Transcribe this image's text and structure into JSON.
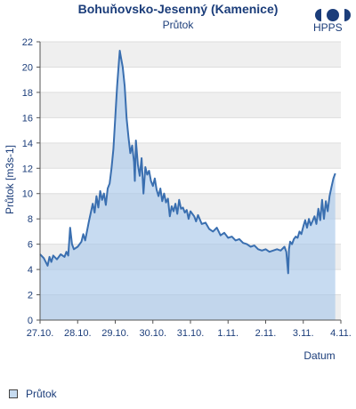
{
  "header": {
    "title": "Bohuňovsko-Jesenný (Kamenice)",
    "subtitle": "Průtok",
    "logo_text": "HPPS"
  },
  "legend": {
    "label": "Průtok"
  },
  "colors": {
    "line": "#3a6fb0",
    "fill": "#a9c8ea",
    "band": "#efefef",
    "axis": "#1b3d7a"
  },
  "chart_data": {
    "type": "area",
    "ylabel": "Průtok [m3s-1]",
    "xlabel": "Datum",
    "ylim": [
      0,
      22
    ],
    "yticks": [
      0,
      2,
      4,
      6,
      8,
      10,
      12,
      14,
      16,
      18,
      20,
      22
    ],
    "xlim": [
      0,
      8
    ],
    "xticks": [
      {
        "value": 0,
        "label": "27.10."
      },
      {
        "value": 1,
        "label": "28.10."
      },
      {
        "value": 2,
        "label": "29.10."
      },
      {
        "value": 3,
        "label": "30.10."
      },
      {
        "value": 4,
        "label": "31.10."
      },
      {
        "value": 5,
        "label": "1.11."
      },
      {
        "value": 6,
        "label": "2.11."
      },
      {
        "value": 7,
        "label": "3.11."
      },
      {
        "value": 8,
        "label": "4.11."
      }
    ],
    "series": [
      {
        "name": "Průtok",
        "points": [
          [
            0.0,
            5.2
          ],
          [
            0.1,
            4.9
          ],
          [
            0.2,
            4.3
          ],
          [
            0.25,
            5.0
          ],
          [
            0.3,
            4.6
          ],
          [
            0.35,
            5.1
          ],
          [
            0.45,
            4.8
          ],
          [
            0.55,
            5.2
          ],
          [
            0.65,
            5.0
          ],
          [
            0.7,
            5.4
          ],
          [
            0.75,
            5.1
          ],
          [
            0.8,
            7.3
          ],
          [
            0.85,
            6.0
          ],
          [
            0.9,
            5.6
          ],
          [
            1.0,
            5.8
          ],
          [
            1.1,
            6.2
          ],
          [
            1.15,
            6.8
          ],
          [
            1.2,
            6.3
          ],
          [
            1.3,
            7.8
          ],
          [
            1.4,
            9.2
          ],
          [
            1.45,
            8.5
          ],
          [
            1.5,
            9.8
          ],
          [
            1.55,
            8.9
          ],
          [
            1.6,
            10.2
          ],
          [
            1.65,
            9.5
          ],
          [
            1.7,
            10.0
          ],
          [
            1.75,
            9.1
          ],
          [
            1.8,
            10.4
          ],
          [
            1.85,
            10.8
          ],
          [
            1.9,
            12.0
          ],
          [
            1.95,
            13.5
          ],
          [
            2.0,
            16.0
          ],
          [
            2.05,
            18.5
          ],
          [
            2.1,
            20.5
          ],
          [
            2.12,
            21.3
          ],
          [
            2.15,
            20.8
          ],
          [
            2.2,
            20.0
          ],
          [
            2.25,
            18.5
          ],
          [
            2.3,
            16.0
          ],
          [
            2.35,
            14.5
          ],
          [
            2.4,
            13.2
          ],
          [
            2.45,
            13.8
          ],
          [
            2.5,
            12.5
          ],
          [
            2.52,
            11.0
          ],
          [
            2.55,
            14.2
          ],
          [
            2.6,
            12.3
          ],
          [
            2.65,
            11.4
          ],
          [
            2.7,
            12.8
          ],
          [
            2.75,
            10.0
          ],
          [
            2.8,
            12.1
          ],
          [
            2.85,
            11.5
          ],
          [
            2.9,
            11.8
          ],
          [
            2.95,
            11.0
          ],
          [
            3.0,
            10.6
          ],
          [
            3.05,
            11.2
          ],
          [
            3.1,
            10.3
          ],
          [
            3.15,
            9.8
          ],
          [
            3.2,
            10.4
          ],
          [
            3.25,
            9.4
          ],
          [
            3.3,
            10.0
          ],
          [
            3.35,
            9.3
          ],
          [
            3.4,
            9.6
          ],
          [
            3.45,
            8.2
          ],
          [
            3.5,
            9.0
          ],
          [
            3.55,
            8.6
          ],
          [
            3.6,
            9.2
          ],
          [
            3.65,
            8.4
          ],
          [
            3.7,
            9.5
          ],
          [
            3.75,
            8.8
          ],
          [
            3.8,
            8.9
          ],
          [
            3.85,
            8.5
          ],
          [
            3.9,
            8.7
          ],
          [
            3.95,
            8.0
          ],
          [
            4.0,
            8.6
          ],
          [
            4.1,
            8.2
          ],
          [
            4.15,
            7.8
          ],
          [
            4.2,
            8.3
          ],
          [
            4.3,
            7.6
          ],
          [
            4.4,
            7.7
          ],
          [
            4.5,
            7.2
          ],
          [
            4.6,
            7.0
          ],
          [
            4.7,
            7.3
          ],
          [
            4.8,
            6.7
          ],
          [
            4.9,
            6.9
          ],
          [
            5.0,
            6.5
          ],
          [
            5.1,
            6.6
          ],
          [
            5.2,
            6.3
          ],
          [
            5.3,
            6.4
          ],
          [
            5.4,
            6.1
          ],
          [
            5.5,
            6.0
          ],
          [
            5.6,
            5.8
          ],
          [
            5.7,
            5.9
          ],
          [
            5.8,
            5.6
          ],
          [
            5.9,
            5.5
          ],
          [
            6.0,
            5.6
          ],
          [
            6.1,
            5.4
          ],
          [
            6.2,
            5.5
          ],
          [
            6.3,
            5.6
          ],
          [
            6.4,
            5.5
          ],
          [
            6.5,
            5.8
          ],
          [
            6.55,
            5.4
          ],
          [
            6.6,
            3.7
          ],
          [
            6.62,
            5.6
          ],
          [
            6.65,
            6.2
          ],
          [
            6.7,
            6.0
          ],
          [
            6.75,
            6.4
          ],
          [
            6.8,
            6.6
          ],
          [
            6.85,
            6.5
          ],
          [
            6.9,
            7.0
          ],
          [
            6.95,
            6.8
          ],
          [
            7.0,
            7.4
          ],
          [
            7.05,
            7.9
          ],
          [
            7.1,
            7.3
          ],
          [
            7.15,
            8.0
          ],
          [
            7.2,
            7.5
          ],
          [
            7.3,
            8.2
          ],
          [
            7.35,
            7.6
          ],
          [
            7.4,
            8.8
          ],
          [
            7.45,
            7.9
          ],
          [
            7.5,
            9.5
          ],
          [
            7.55,
            8.0
          ],
          [
            7.6,
            9.4
          ],
          [
            7.65,
            8.6
          ],
          [
            7.7,
            9.8
          ],
          [
            7.75,
            10.5
          ],
          [
            7.8,
            11.2
          ],
          [
            7.85,
            11.6
          ]
        ]
      }
    ]
  }
}
